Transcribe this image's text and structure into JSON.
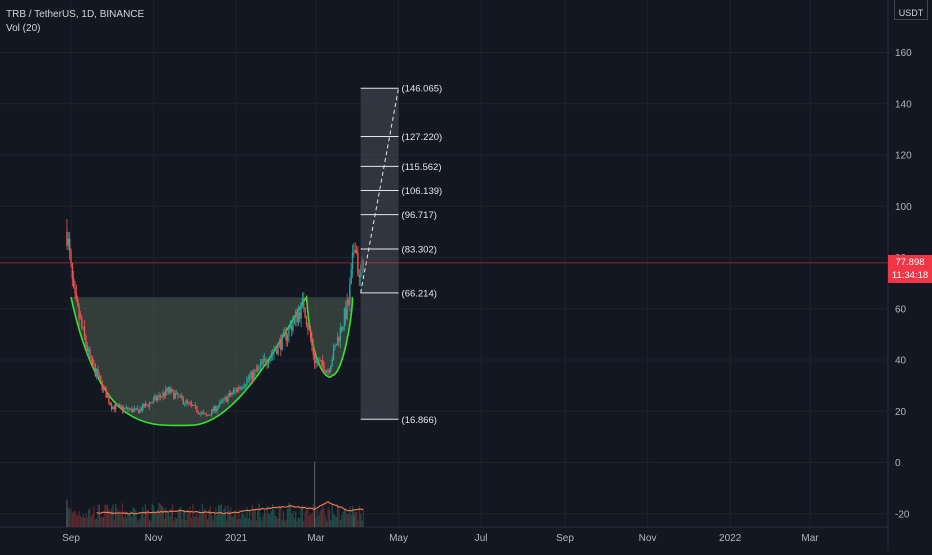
{
  "legend": {
    "symbol": "TRB / TetherUS, 1D, BINANCE",
    "volume": "Vol (20)"
  },
  "currency": "USDT",
  "price_badge": {
    "price": "77.898",
    "countdown": "11:34:18"
  },
  "colors": {
    "background": "#131722",
    "up": "#26a69a",
    "down": "#ef5350",
    "price_line": "#f23645",
    "cup_fill": "#4f5f4f",
    "cup_outline": "#2ee62e",
    "vol_ma": "#f57c4d",
    "projection_fill": "#4a4e5a"
  },
  "chart_data": {
    "type": "candlestick",
    "y_axis": {
      "ticks": [
        160,
        140,
        120,
        100,
        80,
        60,
        40,
        20,
        0,
        -20
      ],
      "range": [
        -24,
        180
      ]
    },
    "x_axis": {
      "ticks": [
        "Sep",
        "Nov",
        "2021",
        "Mar",
        "May",
        "Jul",
        "Sep",
        "Nov",
        "2022",
        "Mar"
      ],
      "tick_dates": [
        "2020-09-01",
        "2020-11-01",
        "2021-01-01",
        "2021-03-01",
        "2021-05-01",
        "2021-07-01",
        "2021-09-01",
        "2021-11-01",
        "2022-01-01",
        "2022-03-01"
      ]
    },
    "last_price": 77.898,
    "ohlc_anchors": [
      {
        "date": "2020-08-29",
        "close": 90
      },
      {
        "date": "2020-09-03",
        "close": 65
      },
      {
        "date": "2020-09-15",
        "close": 40
      },
      {
        "date": "2020-10-01",
        "close": 22
      },
      {
        "date": "2020-10-20",
        "close": 20
      },
      {
        "date": "2020-11-12",
        "close": 28
      },
      {
        "date": "2020-12-10",
        "close": 18
      },
      {
        "date": "2021-01-15",
        "close": 35
      },
      {
        "date": "2021-02-05",
        "close": 48
      },
      {
        "date": "2021-02-20",
        "close": 62
      },
      {
        "date": "2021-02-28",
        "close": 40
      },
      {
        "date": "2021-03-10",
        "close": 36
      },
      {
        "date": "2021-03-25",
        "close": 62
      },
      {
        "date": "2021-03-30",
        "close": 88
      },
      {
        "date": "2021-04-02",
        "close": 70
      },
      {
        "date": "2021-04-05",
        "close": 77.9
      }
    ],
    "cup_and_handle": {
      "rim_price": 64.5,
      "rim_start": "2020-09-01",
      "cup_bottom_date": "2020-11-28",
      "cup_bottom_price": 14.5,
      "cup_right_date": "2021-02-22",
      "handle_bottom_date": "2021-03-04",
      "handle_bottom_price": 34,
      "handle_end": "2021-03-28"
    },
    "fib_projection": {
      "start_date": "2021-04-03",
      "end_date": "2021-05-01",
      "levels": [
        {
          "value": 146.065,
          "label": "(146.065)"
        },
        {
          "value": 127.22,
          "label": "(127.220)"
        },
        {
          "value": 115.562,
          "label": "(115.562)"
        },
        {
          "value": 106.139,
          "label": "(106.139)"
        },
        {
          "value": 96.717,
          "label": "(96.717)"
        },
        {
          "value": 83.302,
          "label": "(83.302)"
        },
        {
          "value": 66.214,
          "label": "(66.214)"
        },
        {
          "value": 16.866,
          "label": "(16.866)"
        }
      ]
    },
    "volume_ma_anchors": [
      {
        "date": "2020-09-20",
        "value": 0.22
      },
      {
        "date": "2020-10-15",
        "value": 0.18
      },
      {
        "date": "2020-11-20",
        "value": 0.3
      },
      {
        "date": "2020-12-25",
        "value": 0.18
      },
      {
        "date": "2021-01-20",
        "value": 0.4
      },
      {
        "date": "2021-02-10",
        "value": 0.55
      },
      {
        "date": "2021-02-28",
        "value": 0.4
      },
      {
        "date": "2021-03-10",
        "value": 0.75
      },
      {
        "date": "2021-03-25",
        "value": 0.3
      },
      {
        "date": "2021-04-05",
        "value": 0.4
      }
    ]
  }
}
